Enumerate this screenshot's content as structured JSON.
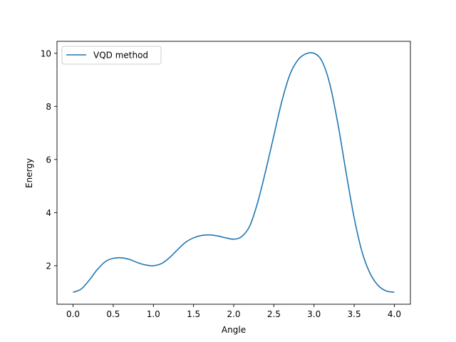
{
  "colors": {
    "background": "#ffffff",
    "axes": "#000000",
    "series": "#1f77b4",
    "legend_border": "#cccccc"
  },
  "chart_data": {
    "type": "line",
    "title": "",
    "xlabel": "Angle",
    "ylabel": "Energy",
    "xlim": [
      -0.2,
      4.2
    ],
    "ylim": [
      0.55,
      10.45
    ],
    "x_ticks": [
      0.0,
      0.5,
      1.0,
      1.5,
      2.0,
      2.5,
      3.0,
      3.5,
      4.0
    ],
    "x_tick_labels": [
      "0.0",
      "0.5",
      "1.0",
      "1.5",
      "2.0",
      "2.5",
      "3.0",
      "3.5",
      "4.0"
    ],
    "y_ticks": [
      2,
      4,
      6,
      8,
      10
    ],
    "y_tick_labels": [
      "2",
      "4",
      "6",
      "8",
      "10"
    ],
    "grid": false,
    "legend": {
      "position": "upper-left"
    },
    "series": [
      {
        "name": "VQD method",
        "color": "#1f77b4",
        "x": [
          0.0,
          0.1,
          0.2,
          0.3,
          0.4,
          0.5,
          0.6,
          0.7,
          0.8,
          0.9,
          1.0,
          1.1,
          1.2,
          1.3,
          1.4,
          1.5,
          1.6,
          1.7,
          1.8,
          1.9,
          2.0,
          2.1,
          2.2,
          2.3,
          2.4,
          2.5,
          2.6,
          2.7,
          2.8,
          2.9,
          3.0,
          3.1,
          3.2,
          3.3,
          3.4,
          3.5,
          3.6,
          3.7,
          3.8,
          3.9,
          4.0
        ],
        "y": [
          1.0,
          1.12,
          1.45,
          1.85,
          2.15,
          2.28,
          2.3,
          2.24,
          2.12,
          2.03,
          2.0,
          2.08,
          2.3,
          2.6,
          2.88,
          3.05,
          3.14,
          3.16,
          3.12,
          3.05,
          3.0,
          3.1,
          3.5,
          4.4,
          5.6,
          6.9,
          8.2,
          9.2,
          9.75,
          9.98,
          10.0,
          9.7,
          8.8,
          7.3,
          5.5,
          3.8,
          2.5,
          1.7,
          1.25,
          1.05,
          1.0
        ]
      }
    ]
  }
}
